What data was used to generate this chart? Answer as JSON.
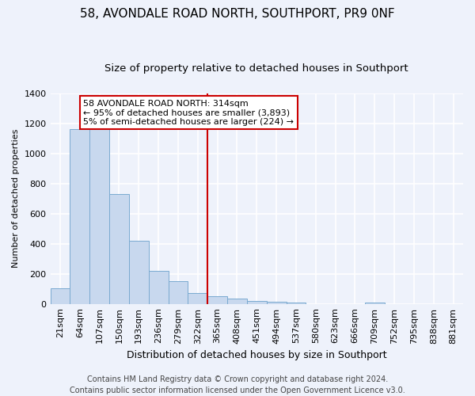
{
  "title": "58, AVONDALE ROAD NORTH, SOUTHPORT, PR9 0NF",
  "subtitle": "Size of property relative to detached houses in Southport",
  "xlabel": "Distribution of detached houses by size in Southport",
  "ylabel": "Number of detached properties",
  "footer_line1": "Contains HM Land Registry data © Crown copyright and database right 2024.",
  "footer_line2": "Contains public sector information licensed under the Open Government Licence v3.0.",
  "categories": [
    "21sqm",
    "64sqm",
    "107sqm",
    "150sqm",
    "193sqm",
    "236sqm",
    "279sqm",
    "322sqm",
    "365sqm",
    "408sqm",
    "451sqm",
    "494sqm",
    "537sqm",
    "580sqm",
    "623sqm",
    "666sqm",
    "709sqm",
    "752sqm",
    "795sqm",
    "838sqm",
    "881sqm"
  ],
  "bar_values": [
    105,
    1160,
    1160,
    730,
    420,
    220,
    150,
    70,
    50,
    35,
    20,
    15,
    10,
    0,
    0,
    0,
    10,
    0,
    0,
    0,
    0
  ],
  "bar_color": "#c8d8ee",
  "bar_edge_color": "#7aaad0",
  "annotation_line1": "58 AVONDALE ROAD NORTH: 314sqm",
  "annotation_line2": "← 95% of detached houses are smaller (3,893)",
  "annotation_line3": "5% of semi-detached houses are larger (224) →",
  "annotation_box_color": "#ffffff",
  "annotation_box_edge": "#cc0000",
  "vline_color": "#cc0000",
  "vline_x": 7.5,
  "ylim": [
    0,
    1400
  ],
  "yticks": [
    0,
    200,
    400,
    600,
    800,
    1000,
    1200,
    1400
  ],
  "background_color": "#eef2fb",
  "grid_color": "#ffffff",
  "title_fontsize": 11,
  "subtitle_fontsize": 9.5,
  "axis_label_fontsize": 9,
  "ylabel_fontsize": 8,
  "tick_fontsize": 8,
  "footer_fontsize": 7
}
